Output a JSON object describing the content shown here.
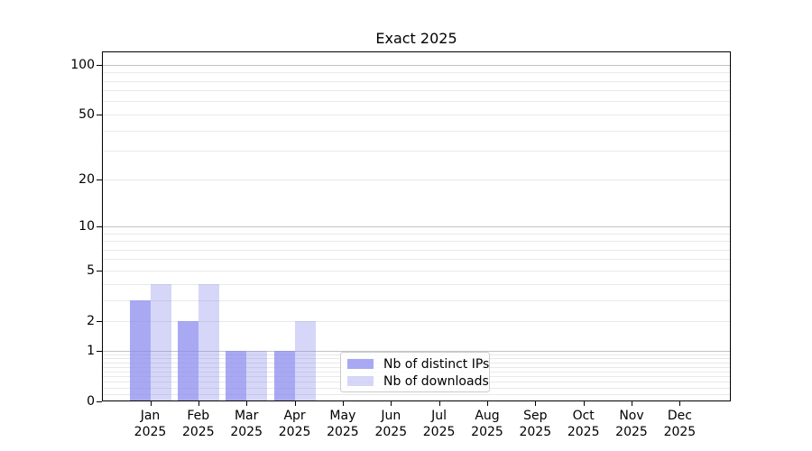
{
  "chart_data": {
    "type": "bar",
    "title": "Exact 2025",
    "categories": [
      "Jan 2025",
      "Feb 2025",
      "Mar 2025",
      "Apr 2025",
      "May 2025",
      "Jun 2025",
      "Jul 2025",
      "Aug 2025",
      "Sep 2025",
      "Oct 2025",
      "Nov 2025",
      "Dec 2025"
    ],
    "x_tick_months": [
      "Jan",
      "Feb",
      "Mar",
      "Apr",
      "May",
      "Jun",
      "Jul",
      "Aug",
      "Sep",
      "Oct",
      "Nov",
      "Dec"
    ],
    "x_tick_year": "2025",
    "series": [
      {
        "name": "Nb of distinct IPs",
        "values": [
          3,
          2,
          1,
          1,
          0,
          0,
          0,
          0,
          0,
          0,
          0,
          0
        ],
        "color": "rgba(136,136,238,0.72)"
      },
      {
        "name": "Nb of downloads",
        "values": [
          4,
          4,
          1,
          2,
          0,
          0,
          0,
          0,
          0,
          0,
          0,
          0
        ],
        "color": "rgba(136,136,238,0.34)"
      }
    ],
    "yscale": "log1p",
    "ylim": [
      0,
      122
    ],
    "y_tick_values": [
      100,
      50,
      20,
      10,
      5,
      2,
      1,
      0
    ],
    "y_tick_labels": [
      "100",
      "50",
      "20",
      "10",
      "5",
      "2",
      "1",
      "0"
    ],
    "y_major_gridlines": [
      100,
      10,
      1
    ],
    "y_minor_gridlines": [
      90,
      80,
      70,
      60,
      50,
      40,
      30,
      20,
      9,
      8,
      7,
      6,
      5,
      4,
      3,
      2,
      0.9,
      0.8,
      0.7,
      0.6,
      0.5,
      0.4,
      0.3,
      0.2,
      0.1
    ],
    "grid": "horizontal",
    "legend_position": "lower center-left inside plot"
  },
  "colors": {
    "background": "#ffffff",
    "bar_base": "#8888ee",
    "bar_distinct_ips": "rgba(136,136,238,0.72)",
    "bar_downloads": "rgba(136,136,238,0.34)",
    "grid_minor": "#e9e9e9",
    "grid_major": "#c3c3c3",
    "spine": "#000000",
    "legend_border": "#cccccc",
    "text": "#000000"
  }
}
